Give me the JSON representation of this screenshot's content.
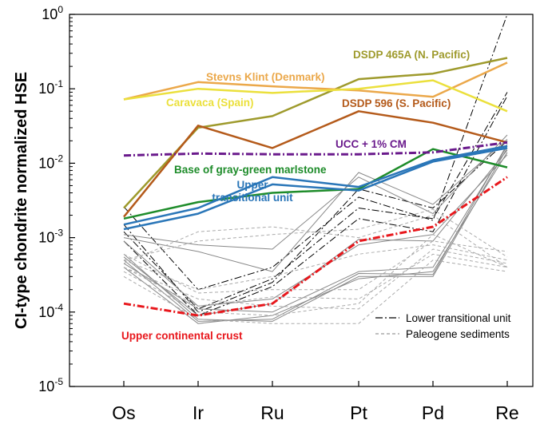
{
  "chart_data": {
    "type": "line",
    "ylabel": "CI-type chondrite normalized HSE",
    "yscale": "log",
    "ylim": [
      1e-05,
      1
    ],
    "y_tick_labels": [
      {
        "value": 1,
        "base": "10",
        "exp": "0"
      },
      {
        "value": 0.1,
        "base": "10",
        "exp": "-1"
      },
      {
        "value": 0.01,
        "base": "10",
        "exp": "-2"
      },
      {
        "value": 0.001,
        "base": "10",
        "exp": "-3"
      },
      {
        "value": 0.0001,
        "base": "10",
        "exp": "-4"
      },
      {
        "value": 1e-05,
        "base": "10",
        "exp": "-5"
      }
    ],
    "categories": [
      "Os",
      "Ir",
      "Ru",
      "Pt",
      "Pd",
      "Re"
    ],
    "grid": false,
    "legend": {
      "position": "bottom-right",
      "entries": [
        {
          "label": "Lower transitional unit",
          "style": "dashdot",
          "color": "#000000"
        },
        {
          "label": "Paleogene sediments",
          "style": "dashed",
          "color": "#999999"
        }
      ]
    },
    "series": [
      {
        "name": "DSDP 465A (N. Pacific)",
        "color": "#9e9a2c",
        "style": "solid",
        "width": 2.5,
        "values": [
          0.0025,
          0.03,
          0.043,
          0.135,
          0.16,
          0.26
        ]
      },
      {
        "name": "Stevns Klint (Denmark)",
        "color": "#eba84a",
        "style": "solid",
        "width": 2.5,
        "values": [
          0.072,
          0.123,
          0.108,
          0.095,
          0.078,
          0.225
        ]
      },
      {
        "name": "Caravaca (Spain)",
        "color": "#ebe03c",
        "style": "solid",
        "width": 2.5,
        "values": [
          0.072,
          0.1,
          0.088,
          0.1,
          0.13,
          0.05
        ]
      },
      {
        "name": "DSDP 596 (S. Pacific)",
        "color": "#b45a1a",
        "style": "solid",
        "width": 2.5,
        "values": [
          0.0019,
          0.032,
          0.016,
          0.05,
          0.035,
          0.019
        ]
      },
      {
        "name": "UCC + 1% CM",
        "color": "#6a1a8c",
        "style": "dashdot",
        "width": 3,
        "values": [
          0.0127,
          0.0135,
          0.0132,
          0.0132,
          0.014,
          0.019
        ]
      },
      {
        "name": "Base of gray-green marlstone",
        "color": "#1e8c2a",
        "style": "solid",
        "width": 2.5,
        "values": [
          0.0018,
          0.003,
          0.004,
          0.0045,
          0.0155,
          0.0088
        ]
      },
      {
        "name": "Upper transitional unit",
        "color": "#2a76b8",
        "style": "solid",
        "width": 2.5,
        "values": [
          0.0015,
          0.0025,
          0.0065,
          0.0048,
          0.011,
          0.017
        ]
      },
      {
        "name": "",
        "color": "#2a76b8",
        "style": "solid",
        "width": 2.5,
        "values": [
          0.0013,
          0.0021,
          0.0052,
          0.0043,
          0.0105,
          0.016
        ]
      },
      {
        "name": "Upper continental crust",
        "color": "#e8171c",
        "style": "dashdot",
        "width": 3,
        "values": [
          0.00013,
          9e-05,
          0.00013,
          0.0009,
          0.0014,
          0.0065
        ]
      },
      {
        "name": "",
        "color": "#000000",
        "style": "dashdot",
        "width": 1,
        "values": [
          0.0026,
          0.0002,
          0.0004,
          0.0035,
          0.0017,
          1.0
        ]
      },
      {
        "name": "",
        "color": "#000000",
        "style": "dashdot",
        "width": 1,
        "values": [
          0.0012,
          0.00011,
          0.00028,
          0.0025,
          0.0018,
          0.09
        ]
      },
      {
        "name": "",
        "color": "#000000",
        "style": "dashdot",
        "width": 1,
        "values": [
          0.0009,
          9e-05,
          0.00022,
          0.0018,
          0.0012,
          0.08
        ]
      },
      {
        "name": "",
        "color": "#000000",
        "style": "dashdot",
        "width": 1,
        "values": [
          0.0015,
          0.0001,
          0.00025,
          0.0045,
          0.0025,
          0.02
        ]
      },
      {
        "name": "",
        "color": "#888888",
        "style": "solid",
        "width": 1,
        "values": [
          0.0011,
          0.0008,
          0.0007,
          0.0065,
          0.0021,
          0.024
        ]
      },
      {
        "name": "",
        "color": "#888888",
        "style": "solid",
        "width": 1,
        "values": [
          0.001,
          0.00065,
          0.00035,
          0.0075,
          0.0028,
          0.021
        ]
      },
      {
        "name": "",
        "color": "#888888",
        "style": "solid",
        "width": 1,
        "values": [
          0.00055,
          9e-05,
          0.00013,
          0.00095,
          0.0009,
          0.015
        ]
      },
      {
        "name": "",
        "color": "#888888",
        "style": "solid",
        "width": 1,
        "values": [
          0.0005,
          7.5e-05,
          8e-05,
          0.00033,
          0.00032,
          0.018
        ]
      },
      {
        "name": "",
        "color": "#888888",
        "style": "solid",
        "width": 1,
        "values": [
          0.0006,
          8e-05,
          7.5e-05,
          0.0003,
          0.0003,
          0.016
        ]
      },
      {
        "name": "",
        "color": "#888888",
        "style": "solid",
        "width": 1,
        "values": [
          0.00045,
          0.00011,
          0.0001,
          0.00035,
          0.0004,
          0.017
        ]
      },
      {
        "name": "",
        "color": "#888888",
        "style": "solid",
        "width": 1,
        "values": [
          0.0004,
          7e-05,
          9e-05,
          0.00028,
          0.00035,
          0.014
        ]
      },
      {
        "name": "",
        "color": "#888888",
        "style": "solid",
        "width": 1,
        "values": [
          0.0009,
          0.00012,
          0.00015,
          0.0008,
          0.0011,
          0.013
        ]
      },
      {
        "name": "",
        "color": "#aaaaaa",
        "style": "dashed",
        "width": 1,
        "values": [
          0.00045,
          0.0012,
          0.0014,
          0.001,
          0.002,
          0.0004
        ]
      },
      {
        "name": "",
        "color": "#aaaaaa",
        "style": "dashed",
        "width": 1,
        "values": [
          0.0005,
          0.0009,
          0.0011,
          0.0013,
          0.0024,
          0.00055
        ]
      },
      {
        "name": "",
        "color": "#aaaaaa",
        "style": "dashed",
        "width": 1,
        "values": [
          0.0004,
          0.00015,
          0.00012,
          0.00011,
          0.0007,
          0.00045
        ]
      },
      {
        "name": "",
        "color": "#aaaaaa",
        "style": "dashed",
        "width": 1,
        "values": [
          0.0003,
          8e-05,
          7e-05,
          7e-05,
          0.0005,
          0.00035
        ]
      },
      {
        "name": "",
        "color": "#aaaaaa",
        "style": "dashed",
        "width": 1,
        "values": [
          0.00035,
          0.0001,
          9e-05,
          0.00013,
          0.0011,
          0.0004
        ]
      },
      {
        "name": "",
        "color": "#aaaaaa",
        "style": "dashed",
        "width": 1,
        "values": [
          0.0006,
          0.00018,
          0.0002,
          0.0002,
          0.0009,
          0.00065
        ]
      },
      {
        "name": "",
        "color": "#aaaaaa",
        "style": "dashed",
        "width": 1,
        "values": [
          0.0005,
          0.0002,
          0.0003,
          0.0006,
          0.0008,
          0.0005
        ]
      },
      {
        "name": "",
        "color": "#aaaaaa",
        "style": "dashed",
        "width": 1,
        "values": [
          0.0004,
          0.00012,
          0.00016,
          0.00015,
          0.0006,
          0.0004
        ]
      }
    ],
    "annotations": [
      {
        "text": "DSDP 465A (N. Pacific)",
        "color": "#9e9a2c"
      },
      {
        "text": "Stevns Klint (Denmark)",
        "color": "#eba84a"
      },
      {
        "text": "Caravaca (Spain)",
        "color": "#ebe03c"
      },
      {
        "text": "DSDP 596 (S. Pacific)",
        "color": "#b45a1a"
      },
      {
        "text": "UCC + 1% CM",
        "color": "#6a1a8c"
      },
      {
        "text": "Base of gray-green marlstone",
        "color": "#1e8c2a"
      },
      {
        "text": "Upper",
        "color": "#2a76b8"
      },
      {
        "text": "transitional unit",
        "color": "#2a76b8"
      },
      {
        "text": "Upper continental crust",
        "color": "#e8171c"
      }
    ]
  }
}
